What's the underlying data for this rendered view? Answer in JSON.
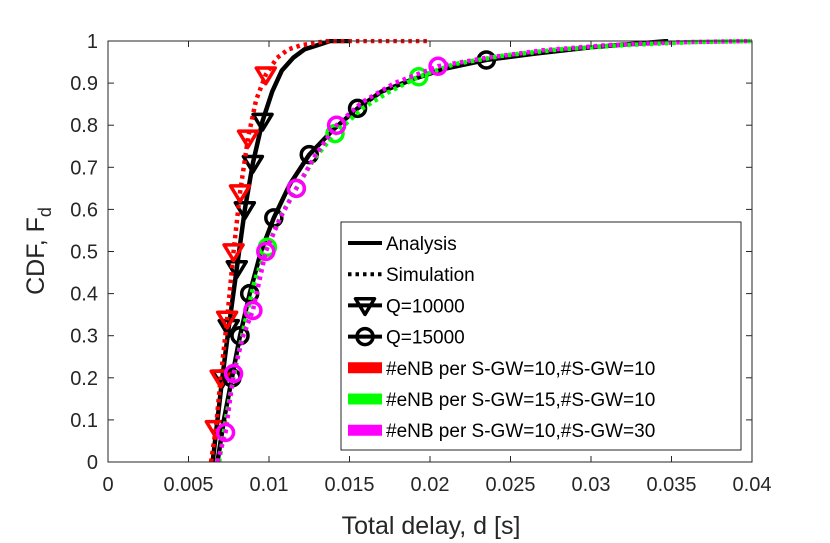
{
  "chart_data": {
    "type": "line",
    "title": "",
    "xlabel": "Total delay, d [s]",
    "ylabel_main": "CDF,  F",
    "ylabel_sub": "d",
    "xlim": [
      0,
      0.04
    ],
    "ylim": [
      0,
      1
    ],
    "xticks": [
      0,
      0.005,
      0.01,
      0.015,
      0.02,
      0.025,
      0.03,
      0.035,
      0.04
    ],
    "xtick_labels": [
      "0",
      "0.005",
      "0.01",
      "0.015",
      "0.02",
      "0.025",
      "0.03",
      "0.035",
      "0.04"
    ],
    "yticks": [
      0,
      0.1,
      0.2,
      0.3,
      0.4,
      0.5,
      0.6,
      0.7,
      0.8,
      0.9,
      1
    ],
    "ytick_labels": [
      "0",
      "0.1",
      "0.2",
      "0.3",
      "0.4",
      "0.5",
      "0.6",
      "0.7",
      "0.8",
      "0.9",
      "1"
    ],
    "grid": false,
    "legend_position": "bottom-right",
    "legend": [
      {
        "label": "Analysis",
        "kind": "solid",
        "color": "#000000"
      },
      {
        "label": "Simulation",
        "kind": "dotted",
        "color": "#000000"
      },
      {
        "label": "Q=10000",
        "kind": "triangle",
        "color": "#000000"
      },
      {
        "label": "Q=15000",
        "kind": "circle",
        "color": "#000000"
      },
      {
        "label": "#eNB per S-GW=10,#S-GW=10",
        "kind": "color",
        "color": "#ff0000"
      },
      {
        "label": "#eNB per S-GW=15,#S-GW=10",
        "kind": "color",
        "color": "#00ff00"
      },
      {
        "label": "#eNB per S-GW=10,#S-GW=30",
        "kind": "color",
        "color": "#ff00ff"
      }
    ],
    "series": [
      {
        "name": "Analysis, Q=10000",
        "style": "solid",
        "color": "#000000",
        "marker": "triangle",
        "x": [
          0.0065,
          0.0068,
          0.0071,
          0.0075,
          0.008,
          0.0085,
          0.009,
          0.0096,
          0.0102,
          0.0108,
          0.0115,
          0.0122,
          0.013,
          0.0138,
          0.015
        ],
        "y": [
          0,
          0.1,
          0.2,
          0.32,
          0.46,
          0.6,
          0.71,
          0.81,
          0.88,
          0.93,
          0.96,
          0.98,
          0.99,
          1.0,
          1.0
        ],
        "marker_indices": [
          2,
          3,
          4,
          5,
          6,
          7
        ]
      },
      {
        "name": "Simulation, Q=10000, eNB 10 S-GW 10",
        "style": "dotted",
        "color": "#ff0000",
        "marker": "triangle",
        "x": [
          0.0064,
          0.0067,
          0.007,
          0.0074,
          0.0078,
          0.0082,
          0.0087,
          0.0092,
          0.0098,
          0.0105,
          0.0112,
          0.012,
          0.0128,
          0.0136,
          0.0145,
          0.016,
          0.02
        ],
        "y": [
          0,
          0.08,
          0.2,
          0.34,
          0.5,
          0.64,
          0.77,
          0.86,
          0.92,
          0.96,
          0.98,
          0.99,
          0.995,
          1.0,
          1.0,
          1.0,
          1.0
        ],
        "marker_indices": [
          1,
          2,
          3,
          4,
          5,
          6,
          8
        ]
      },
      {
        "name": "Analysis, Q=15000",
        "style": "solid",
        "color": "#000000",
        "marker": "circle",
        "x": [
          0.0068,
          0.0072,
          0.0077,
          0.0082,
          0.0088,
          0.0095,
          0.0103,
          0.0113,
          0.0125,
          0.014,
          0.0155,
          0.017,
          0.019,
          0.021,
          0.0235,
          0.0265,
          0.03,
          0.0348
        ],
        "y": [
          0,
          0.1,
          0.2,
          0.3,
          0.4,
          0.5,
          0.58,
          0.66,
          0.73,
          0.79,
          0.84,
          0.88,
          0.91,
          0.935,
          0.955,
          0.97,
          0.985,
          1.0
        ],
        "marker_indices": [
          2,
          3,
          4,
          6,
          8,
          10,
          14
        ]
      },
      {
        "name": "Simulation, Q=15000, eNB 15 S-GW 10",
        "style": "dotted",
        "color": "#00ff00",
        "marker": "circle",
        "x": [
          0.0069,
          0.0074,
          0.0079,
          0.0085,
          0.0091,
          0.0099,
          0.0108,
          0.0117,
          0.0128,
          0.0141,
          0.0158,
          0.0175,
          0.0193,
          0.0215,
          0.0245,
          0.028,
          0.032,
          0.036,
          0.04
        ],
        "y": [
          0,
          0.12,
          0.22,
          0.33,
          0.43,
          0.51,
          0.59,
          0.65,
          0.72,
          0.78,
          0.84,
          0.88,
          0.915,
          0.945,
          0.965,
          0.98,
          0.99,
          0.997,
          1.0
        ],
        "marker_indices": [
          5,
          7,
          9,
          12
        ]
      },
      {
        "name": "Simulation, Q=15000, eNB 10 S-GW 30",
        "style": "dotted",
        "color": "#ff00ff",
        "marker": "circle",
        "x": [
          0.0068,
          0.0073,
          0.0078,
          0.0084,
          0.009,
          0.0098,
          0.0107,
          0.0117,
          0.0129,
          0.0142,
          0.0158,
          0.0178,
          0.0205,
          0.0235,
          0.027,
          0.031,
          0.0355,
          0.04
        ],
        "y": [
          0,
          0.07,
          0.21,
          0.3,
          0.36,
          0.5,
          0.58,
          0.65,
          0.73,
          0.8,
          0.855,
          0.9,
          0.94,
          0.96,
          0.978,
          0.99,
          0.997,
          1.0
        ],
        "marker_indices": [
          1,
          2,
          4,
          5,
          7,
          9,
          12
        ]
      }
    ]
  }
}
